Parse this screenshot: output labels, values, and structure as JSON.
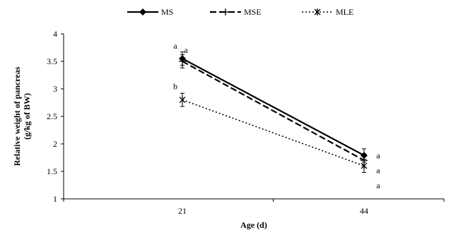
{
  "chart_data": {
    "type": "line",
    "xlabel": "Age (d)",
    "ylabel": "Relative weight of pancreas (g/kg of BW)",
    "ylabel_lines": [
      "Relative weight of pancreas",
      "(g/kg of BW)"
    ],
    "ylim": [
      1,
      4
    ],
    "yticks": [
      "1",
      "1.5",
      "2",
      "2.5",
      "3",
      "3.5",
      "4"
    ],
    "categories": [
      "21",
      "44"
    ],
    "legend_position": "top-center",
    "grid": false,
    "series": [
      {
        "name": "MS",
        "values": [
          3.55,
          1.79
        ],
        "errors": [
          0.12,
          0.12
        ],
        "letters": [
          "a",
          "a"
        ],
        "color": "#000000",
        "line_style": "solid",
        "marker": "diamond"
      },
      {
        "name": "MSE",
        "values": [
          3.5,
          1.7
        ],
        "errors": [
          0.12,
          0.12
        ],
        "letters": [
          "a",
          "a"
        ],
        "color": "#000000",
        "line_style": "dashed",
        "marker": "plus"
      },
      {
        "name": "MLE",
        "values": [
          2.8,
          1.6
        ],
        "errors": [
          0.12,
          0.12
        ],
        "letters": [
          "b",
          "a"
        ],
        "color": "#000000",
        "line_style": "dotted",
        "marker": "star"
      }
    ]
  }
}
